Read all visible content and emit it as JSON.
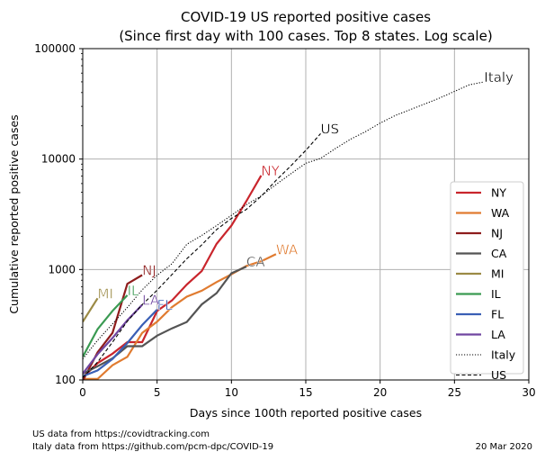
{
  "chart_data": {
    "type": "line",
    "title": "COVID-19 US reported positive cases",
    "subtitle": "(Since first day with 100 cases. Top 8 states. Log scale)",
    "xlabel": "Days since 100th reported positive cases",
    "ylabel": "Cumulative reported positive cases",
    "xlim": [
      0,
      30
    ],
    "ylim": [
      100,
      100000
    ],
    "yscale": "log",
    "grid": true,
    "xticks": [
      0,
      5,
      10,
      15,
      20,
      25,
      30
    ],
    "xtick_labels": [
      "0",
      "5",
      "10",
      "15",
      "20",
      "25",
      "30"
    ],
    "yticks": [
      100,
      1000,
      10000,
      100000
    ],
    "ytick_labels": [
      "100",
      "1000",
      "10000",
      "100000"
    ],
    "legend_position": "lower-right",
    "series": [
      {
        "name": "NY",
        "label": "NY",
        "color": "#c9252c",
        "dash": "solid",
        "x": [
          0,
          1,
          2,
          3,
          4,
          5,
          6,
          7,
          8,
          9,
          10,
          11,
          12
        ],
        "y": [
          105,
          142,
          173,
          220,
          220,
          421,
          525,
          732,
          967,
          1706,
          2495,
          4152,
          7102
        ]
      },
      {
        "name": "WA",
        "label": "WA",
        "color": "#e07b30",
        "dash": "solid",
        "x": [
          0,
          1,
          2,
          3,
          4,
          5,
          6,
          7,
          8,
          9,
          10,
          11,
          12,
          13
        ],
        "y": [
          102,
          102,
          136,
          162,
          267,
          337,
          457,
          568,
          642,
          769,
          904,
          1076,
          1187,
          1376
        ]
      },
      {
        "name": "NJ",
        "label": "NJ",
        "color": "#8e1c1c",
        "dash": "solid",
        "x": [
          0,
          1,
          2,
          3,
          4
        ],
        "y": [
          98,
          178,
          267,
          742,
          890
        ]
      },
      {
        "name": "CA",
        "label": "CA",
        "color": "#545454",
        "dash": "solid",
        "x": [
          0,
          1,
          2,
          3,
          4,
          5,
          6,
          7,
          8,
          9,
          10,
          11
        ],
        "y": [
          114,
          133,
          157,
          202,
          202,
          252,
          293,
          335,
          483,
          611,
          924,
          1063
        ]
      },
      {
        "name": "MI",
        "label": "MI",
        "color": "#9b8a45",
        "dash": "solid",
        "x": [
          0,
          1
        ],
        "y": [
          336,
          549
        ]
      },
      {
        "name": "IL",
        "label": "IL",
        "color": "#3a9a52",
        "dash": "solid",
        "x": [
          0,
          1,
          2,
          3
        ],
        "y": [
          162,
          288,
          422,
          585
        ]
      },
      {
        "name": "FL",
        "label": "FL",
        "color": "#3a5fb5",
        "dash": "solid",
        "x": [
          0,
          1,
          2,
          3,
          4,
          5
        ],
        "y": [
          108,
          122,
          155,
          216,
          314,
          433
        ]
      },
      {
        "name": "LA",
        "label": "LA",
        "color": "#7046a0",
        "dash": "solid",
        "x": [
          0,
          1,
          2,
          3,
          4
        ],
        "y": [
          114,
          171,
          240,
          347,
          479
        ]
      },
      {
        "name": "Italy",
        "label": "Italy",
        "color": "#000000",
        "dash": "dotted",
        "x": [
          0,
          1,
          2,
          3,
          4,
          5,
          6,
          7,
          8,
          9,
          10,
          11,
          12,
          13,
          14,
          15,
          16,
          17,
          18,
          19,
          20,
          21,
          22,
          23,
          24,
          25,
          26,
          27
        ],
        "y": [
          155,
          229,
          322,
          453,
          655,
          888,
          1128,
          1694,
          2036,
          2502,
          3089,
          3858,
          4636,
          5883,
          7375,
          9172,
          10149,
          12462,
          15113,
          17660,
          21157,
          24747,
          27980,
          31506,
          35713,
          41035,
          47021,
          50000
        ]
      },
      {
        "name": "US",
        "label": "US",
        "color": "#000000",
        "dash": "dashed",
        "x": [
          0,
          1,
          2,
          3,
          4,
          5,
          6,
          7,
          8,
          9,
          10,
          11,
          12,
          13,
          14,
          15,
          16
        ],
        "y": [
          105,
          145,
          220,
          340,
          480,
          650,
          900,
          1250,
          1670,
          2300,
          2900,
          3500,
          4600,
          6400,
          8700,
          12000,
          17000
        ]
      }
    ]
  },
  "footer": {
    "source_us": "US data from https://covidtracking.com",
    "source_italy": "Italy data from https://github.com/pcm-dpc/COVID-19",
    "date": "20 Mar 2020"
  }
}
